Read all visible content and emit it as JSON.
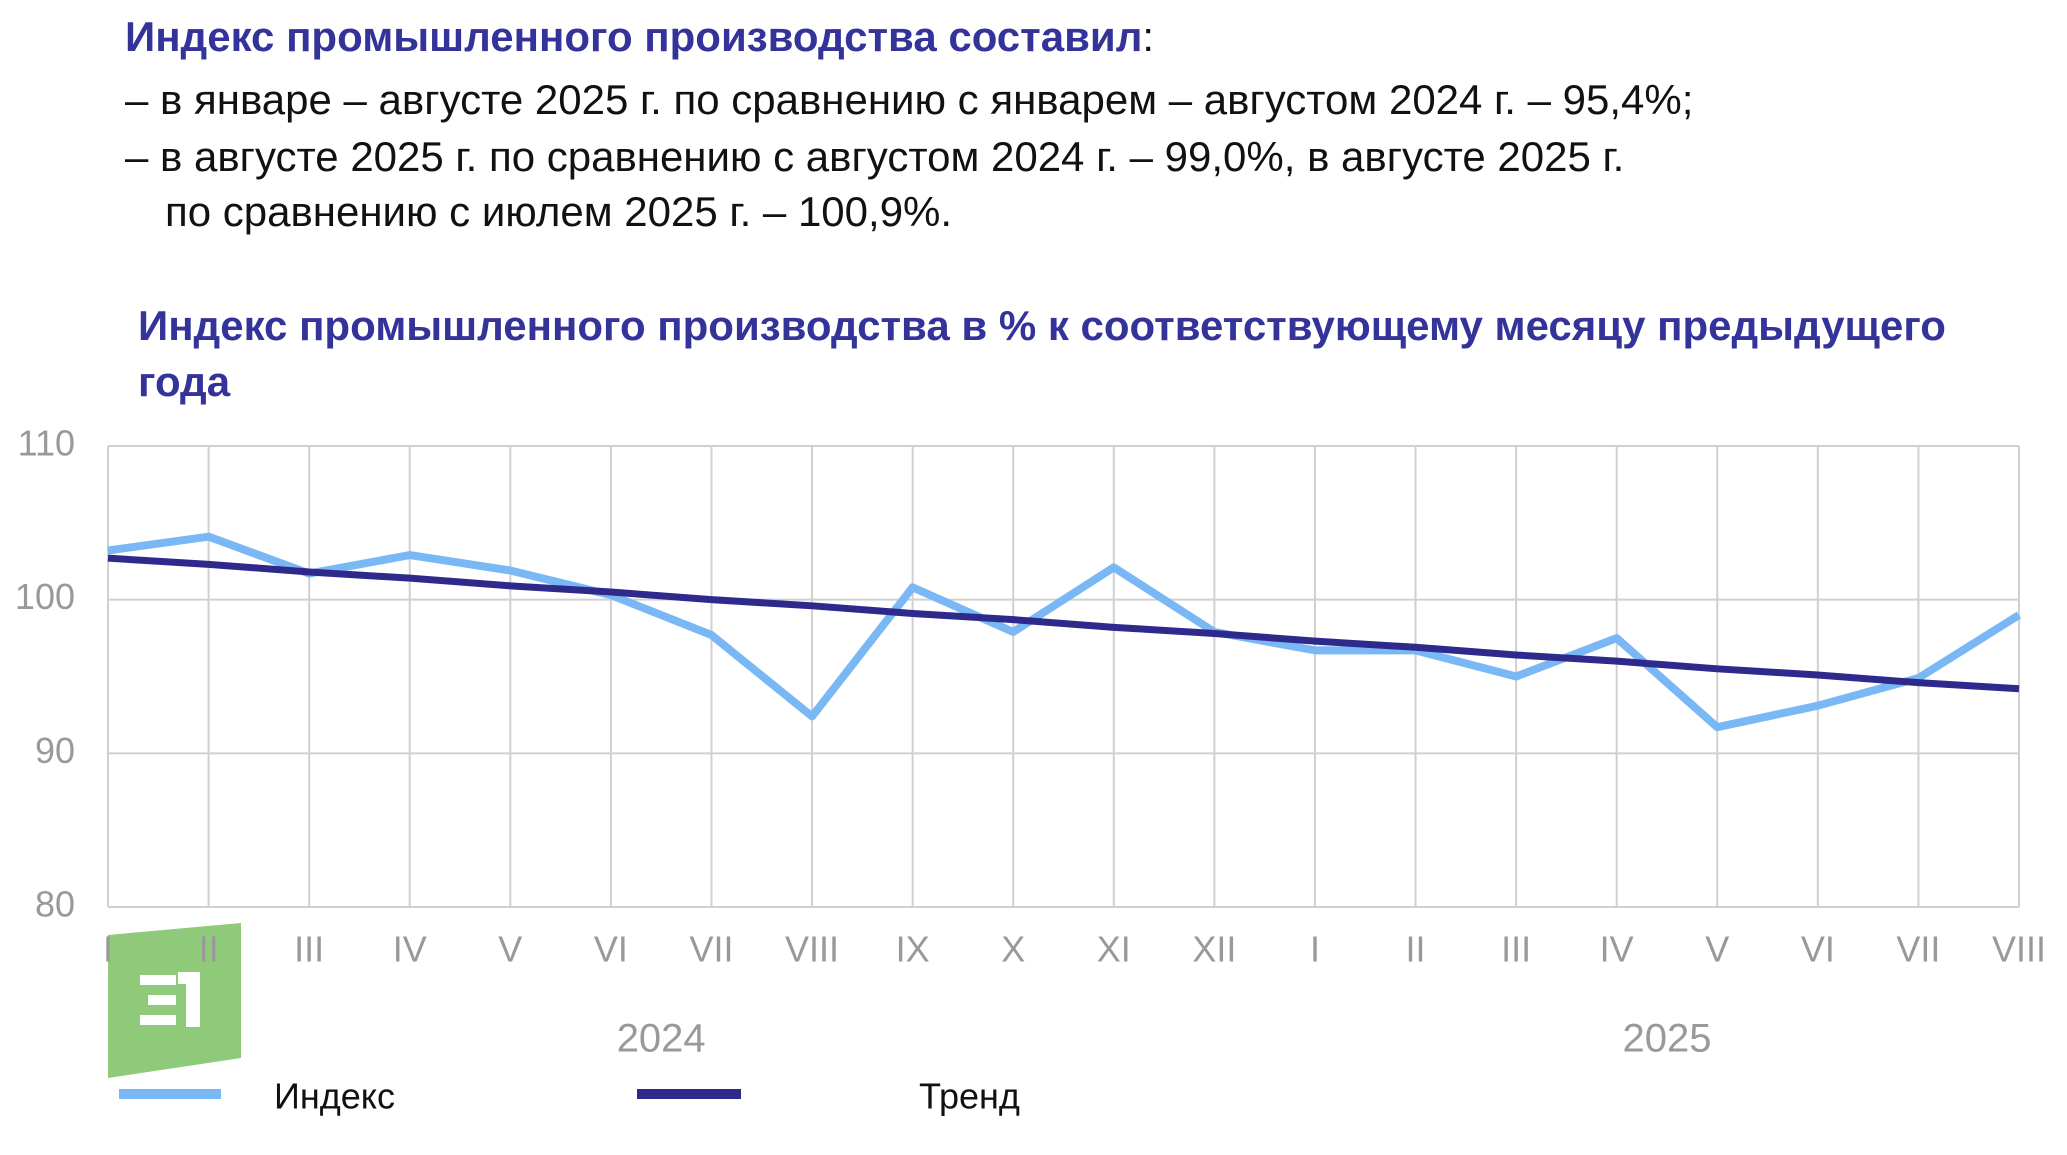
{
  "header": {
    "title": "Индекс промышленного производства составил",
    "title_suffix": ":",
    "lines": [
      "– в январе – августе  2025 г. по сравнению с январем – августом  2024 г. – 95,4%;",
      "– в августе  2025 г. по сравнению с августом  2024 г. – 99,0%, в августе  2025 г.",
      "по сравнению с июлем  2025 г. – 100,9%."
    ]
  },
  "chart_data": {
    "type": "line",
    "title": "Индекс промышленного производства в % к соответствующему месяцу предыдущего года",
    "categories": [
      "I",
      "II",
      "III",
      "IV",
      "V",
      "VI",
      "VII",
      "VIII",
      "IX",
      "X",
      "XI",
      "XII",
      "I",
      "II",
      "III",
      "IV",
      "V",
      "VI",
      "VII",
      "VIII"
    ],
    "x_groups": [
      "2024",
      "2025"
    ],
    "series": [
      {
        "name": "Индекс",
        "color": "#7ab8f5",
        "values": [
          103.2,
          104.1,
          101.7,
          102.9,
          101.9,
          100.3,
          97.7,
          92.4,
          100.8,
          97.9,
          102.1,
          97.9,
          96.7,
          96.7,
          95.0,
          97.5,
          91.7,
          93.1,
          94.9,
          99.0
        ]
      },
      {
        "name": "Тренд",
        "color": "#2e2a8c",
        "values": [
          102.7,
          102.3,
          101.8,
          101.4,
          100.9,
          100.5,
          100.0,
          99.6,
          99.1,
          98.7,
          98.2,
          97.8,
          97.3,
          96.9,
          96.4,
          96.0,
          95.5,
          95.1,
          94.6,
          94.2
        ]
      }
    ],
    "ylim": [
      80,
      110
    ],
    "yticks": [
      80,
      90,
      100,
      110
    ],
    "grid": true,
    "legend": "bottom"
  }
}
